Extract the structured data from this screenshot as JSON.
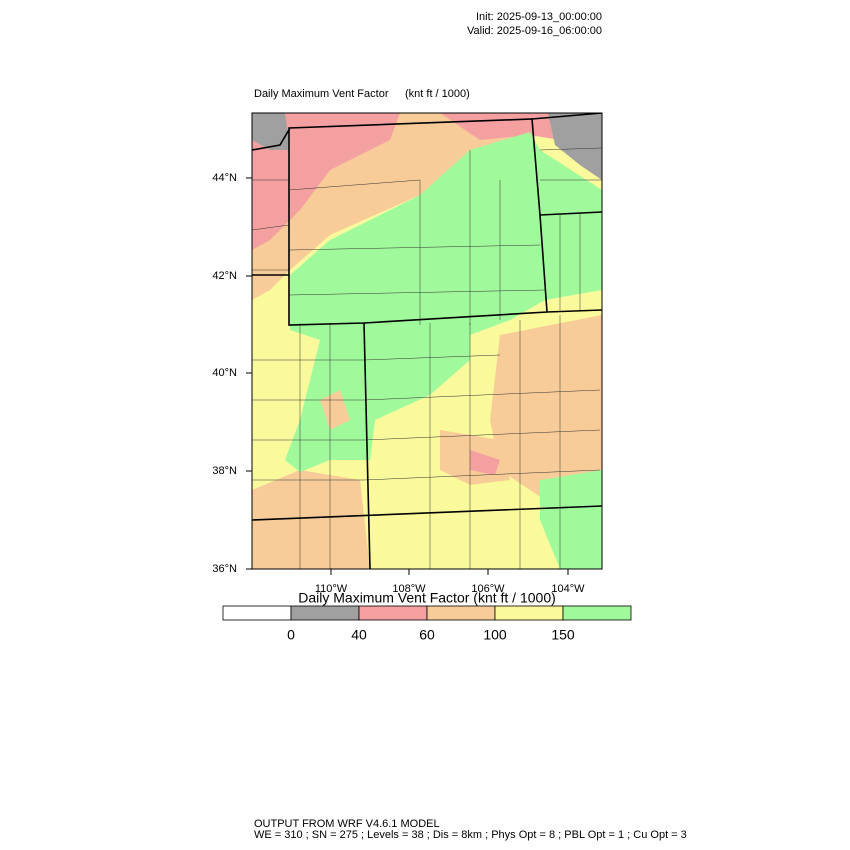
{
  "header": {
    "init": "Init: 2025-09-13_00:00:00",
    "valid": "Valid: 2025-09-16_06:00:00"
  },
  "map": {
    "title": "Daily Maximum Vent Factor",
    "units": "(knt ft / 1000)",
    "lat_labels": [
      "44°N",
      "42°N",
      "40°N",
      "38°N",
      "36°N"
    ],
    "lon_labels": [
      "110°W",
      "108°W",
      "106°W",
      "104°W"
    ]
  },
  "colorbar": {
    "title": "Daily Maximum Vent Factor  (knt ft / 1000)",
    "levels": [
      0,
      40,
      60,
      100,
      150
    ],
    "colors": [
      "#ffffff",
      "#a0a0a0",
      "#f4a0a0",
      "#f8cc98",
      "#fafa9c",
      "#a0fa9c"
    ]
  },
  "footer": {
    "line1": "OUTPUT FROM WRF V4.6.1 MODEL",
    "line2": "WE = 310 ; SN = 275 ; Levels = 38 ; Dis = 8km ; Phys Opt = 8 ; PBL Opt = 1 ; Cu Opt = 3"
  }
}
